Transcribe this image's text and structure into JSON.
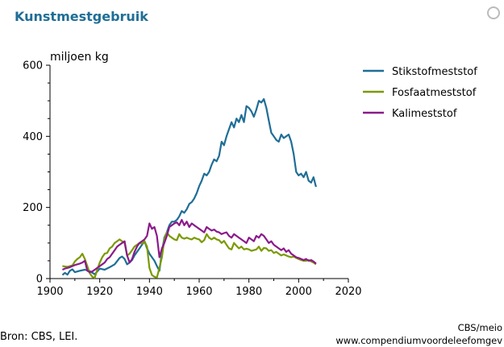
{
  "title": "Kunstmestgebruik",
  "source": "Bron: CBS, LEI.",
  "credit_line1": "CBS/meio",
  "credit_line2": "www.compendiumvoordeleefomgev",
  "colors": {
    "title": "#1f6e96",
    "stikstof": "#1f6e96",
    "fosfaat": "#7a9a01",
    "kali": "#8b1a8b"
  },
  "chart_data": {
    "type": "line",
    "title": "Kunstmestgebruik",
    "xlabel": "",
    "ylabel": "miljoen kg",
    "xlim": [
      1900,
      2020
    ],
    "ylim": [
      0,
      600
    ],
    "x_ticks": [
      1900,
      1920,
      1940,
      1960,
      1980,
      2000,
      2020
    ],
    "y_ticks": [
      0,
      200,
      400,
      600
    ],
    "legend_position": "right",
    "grid": false,
    "series": [
      {
        "name": "Stikstofmeststof",
        "color": "#1f6e96",
        "points": [
          [
            1905,
            10
          ],
          [
            1906,
            16
          ],
          [
            1907,
            11
          ],
          [
            1908,
            22
          ],
          [
            1909,
            26
          ],
          [
            1910,
            18
          ],
          [
            1912,
            22
          ],
          [
            1914,
            25
          ],
          [
            1916,
            21
          ],
          [
            1918,
            12
          ],
          [
            1920,
            28
          ],
          [
            1922,
            25
          ],
          [
            1924,
            32
          ],
          [
            1926,
            40
          ],
          [
            1928,
            58
          ],
          [
            1929,
            62
          ],
          [
            1930,
            55
          ],
          [
            1931,
            40
          ],
          [
            1932,
            45
          ],
          [
            1933,
            52
          ],
          [
            1934,
            65
          ],
          [
            1935,
            75
          ],
          [
            1936,
            85
          ],
          [
            1937,
            95
          ],
          [
            1938,
            105
          ],
          [
            1939,
            85
          ],
          [
            1940,
            70
          ],
          [
            1941,
            60
          ],
          [
            1942,
            50
          ],
          [
            1943,
            35
          ],
          [
            1944,
            22
          ],
          [
            1945,
            75
          ],
          [
            1946,
            115
          ],
          [
            1947,
            130
          ],
          [
            1948,
            150
          ],
          [
            1949,
            160
          ],
          [
            1950,
            160
          ],
          [
            1951,
            165
          ],
          [
            1952,
            175
          ],
          [
            1953,
            190
          ],
          [
            1954,
            185
          ],
          [
            1955,
            195
          ],
          [
            1956,
            210
          ],
          [
            1957,
            215
          ],
          [
            1958,
            225
          ],
          [
            1959,
            240
          ],
          [
            1960,
            260
          ],
          [
            1961,
            275
          ],
          [
            1962,
            295
          ],
          [
            1963,
            290
          ],
          [
            1964,
            300
          ],
          [
            1965,
            320
          ],
          [
            1966,
            335
          ],
          [
            1967,
            330
          ],
          [
            1968,
            345
          ],
          [
            1969,
            385
          ],
          [
            1970,
            375
          ],
          [
            1971,
            400
          ],
          [
            1972,
            420
          ],
          [
            1973,
            440
          ],
          [
            1974,
            425
          ],
          [
            1975,
            450
          ],
          [
            1976,
            440
          ],
          [
            1977,
            460
          ],
          [
            1978,
            440
          ],
          [
            1979,
            485
          ],
          [
            1980,
            480
          ],
          [
            1981,
            470
          ],
          [
            1982,
            455
          ],
          [
            1983,
            475
          ],
          [
            1984,
            500
          ],
          [
            1985,
            495
          ],
          [
            1986,
            505
          ],
          [
            1987,
            480
          ],
          [
            1988,
            445
          ],
          [
            1989,
            410
          ],
          [
            1990,
            400
          ],
          [
            1991,
            390
          ],
          [
            1992,
            385
          ],
          [
            1993,
            405
          ],
          [
            1994,
            395
          ],
          [
            1995,
            400
          ],
          [
            1996,
            405
          ],
          [
            1997,
            385
          ],
          [
            1998,
            350
          ],
          [
            1999,
            300
          ],
          [
            2000,
            290
          ],
          [
            2001,
            295
          ],
          [
            2002,
            285
          ],
          [
            2003,
            300
          ],
          [
            2004,
            275
          ],
          [
            2005,
            270
          ],
          [
            2006,
            285
          ],
          [
            2007,
            258
          ]
        ]
      },
      {
        "name": "Fosfaatmeststof",
        "color": "#7a9a01",
        "points": [
          [
            1905,
            35
          ],
          [
            1906,
            34
          ],
          [
            1907,
            33
          ],
          [
            1908,
            35
          ],
          [
            1909,
            37
          ],
          [
            1910,
            48
          ],
          [
            1911,
            55
          ],
          [
            1912,
            60
          ],
          [
            1913,
            70
          ],
          [
            1914,
            55
          ],
          [
            1915,
            35
          ],
          [
            1916,
            15
          ],
          [
            1917,
            5
          ],
          [
            1918,
            2
          ],
          [
            1919,
            25
          ],
          [
            1920,
            45
          ],
          [
            1921,
            60
          ],
          [
            1922,
            70
          ],
          [
            1923,
            72
          ],
          [
            1924,
            85
          ],
          [
            1925,
            90
          ],
          [
            1926,
            100
          ],
          [
            1927,
            105
          ],
          [
            1928,
            110
          ],
          [
            1929,
            105
          ],
          [
            1930,
            100
          ],
          [
            1931,
            65
          ],
          [
            1932,
            70
          ],
          [
            1933,
            80
          ],
          [
            1934,
            90
          ],
          [
            1935,
            95
          ],
          [
            1936,
            100
          ],
          [
            1937,
            98
          ],
          [
            1938,
            105
          ],
          [
            1939,
            90
          ],
          [
            1940,
            30
          ],
          [
            1941,
            10
          ],
          [
            1942,
            5
          ],
          [
            1943,
            3
          ],
          [
            1944,
            30
          ],
          [
            1945,
            60
          ],
          [
            1946,
            110
          ],
          [
            1947,
            130
          ],
          [
            1948,
            120
          ],
          [
            1949,
            115
          ],
          [
            1950,
            110
          ],
          [
            1951,
            108
          ],
          [
            1952,
            125
          ],
          [
            1953,
            115
          ],
          [
            1954,
            112
          ],
          [
            1955,
            115
          ],
          [
            1956,
            112
          ],
          [
            1957,
            110
          ],
          [
            1958,
            115
          ],
          [
            1959,
            112
          ],
          [
            1960,
            110
          ],
          [
            1961,
            102
          ],
          [
            1962,
            108
          ],
          [
            1963,
            125
          ],
          [
            1964,
            115
          ],
          [
            1965,
            110
          ],
          [
            1966,
            115
          ],
          [
            1967,
            110
          ],
          [
            1968,
            108
          ],
          [
            1969,
            100
          ],
          [
            1970,
            106
          ],
          [
            1971,
            95
          ],
          [
            1972,
            85
          ],
          [
            1973,
            82
          ],
          [
            1974,
            100
          ],
          [
            1975,
            92
          ],
          [
            1976,
            85
          ],
          [
            1977,
            90
          ],
          [
            1978,
            82
          ],
          [
            1979,
            84
          ],
          [
            1980,
            82
          ],
          [
            1981,
            78
          ],
          [
            1982,
            80
          ],
          [
            1983,
            82
          ],
          [
            1984,
            90
          ],
          [
            1985,
            78
          ],
          [
            1986,
            86
          ],
          [
            1987,
            85
          ],
          [
            1988,
            78
          ],
          [
            1989,
            80
          ],
          [
            1990,
            72
          ],
          [
            1991,
            75
          ],
          [
            1992,
            70
          ],
          [
            1993,
            65
          ],
          [
            1994,
            68
          ],
          [
            1995,
            65
          ],
          [
            1996,
            62
          ],
          [
            1997,
            60
          ],
          [
            1998,
            62
          ],
          [
            1999,
            58
          ],
          [
            2000,
            55
          ],
          [
            2001,
            52
          ],
          [
            2002,
            50
          ],
          [
            2003,
            50
          ],
          [
            2004,
            52
          ],
          [
            2005,
            48
          ],
          [
            2006,
            45
          ],
          [
            2007,
            40
          ]
        ]
      },
      {
        "name": "Kalimeststof",
        "color": "#8b1a8b",
        "points": [
          [
            1905,
            25
          ],
          [
            1906,
            28
          ],
          [
            1907,
            30
          ],
          [
            1908,
            32
          ],
          [
            1909,
            35
          ],
          [
            1910,
            38
          ],
          [
            1911,
            40
          ],
          [
            1912,
            42
          ],
          [
            1913,
            45
          ],
          [
            1914,
            50
          ],
          [
            1915,
            22
          ],
          [
            1916,
            18
          ],
          [
            1917,
            20
          ],
          [
            1918,
            25
          ],
          [
            1919,
            30
          ],
          [
            1920,
            35
          ],
          [
            1921,
            40
          ],
          [
            1922,
            45
          ],
          [
            1923,
            55
          ],
          [
            1924,
            60
          ],
          [
            1925,
            70
          ],
          [
            1926,
            80
          ],
          [
            1927,
            90
          ],
          [
            1928,
            95
          ],
          [
            1929,
            100
          ],
          [
            1930,
            105
          ],
          [
            1931,
            65
          ],
          [
            1932,
            45
          ],
          [
            1933,
            55
          ],
          [
            1934,
            75
          ],
          [
            1935,
            90
          ],
          [
            1936,
            100
          ],
          [
            1937,
            105
          ],
          [
            1938,
            110
          ],
          [
            1939,
            120
          ],
          [
            1940,
            155
          ],
          [
            1941,
            140
          ],
          [
            1942,
            145
          ],
          [
            1943,
            120
          ],
          [
            1944,
            60
          ],
          [
            1945,
            85
          ],
          [
            1946,
            100
          ],
          [
            1947,
            120
          ],
          [
            1948,
            145
          ],
          [
            1949,
            150
          ],
          [
            1950,
            155
          ],
          [
            1951,
            158
          ],
          [
            1952,
            150
          ],
          [
            1953,
            165
          ],
          [
            1954,
            150
          ],
          [
            1955,
            160
          ],
          [
            1956,
            145
          ],
          [
            1957,
            155
          ],
          [
            1958,
            150
          ],
          [
            1959,
            145
          ],
          [
            1960,
            140
          ],
          [
            1961,
            135
          ],
          [
            1962,
            130
          ],
          [
            1963,
            145
          ],
          [
            1964,
            140
          ],
          [
            1965,
            135
          ],
          [
            1966,
            138
          ],
          [
            1967,
            132
          ],
          [
            1968,
            130
          ],
          [
            1969,
            125
          ],
          [
            1970,
            128
          ],
          [
            1971,
            130
          ],
          [
            1972,
            120
          ],
          [
            1973,
            115
          ],
          [
            1974,
            125
          ],
          [
            1975,
            120
          ],
          [
            1976,
            115
          ],
          [
            1977,
            110
          ],
          [
            1978,
            105
          ],
          [
            1979,
            100
          ],
          [
            1980,
            115
          ],
          [
            1981,
            110
          ],
          [
            1982,
            105
          ],
          [
            1983,
            120
          ],
          [
            1984,
            115
          ],
          [
            1985,
            125
          ],
          [
            1986,
            120
          ],
          [
            1987,
            110
          ],
          [
            1988,
            100
          ],
          [
            1989,
            105
          ],
          [
            1990,
            95
          ],
          [
            1991,
            90
          ],
          [
            1992,
            85
          ],
          [
            1993,
            80
          ],
          [
            1994,
            85
          ],
          [
            1995,
            75
          ],
          [
            1996,
            80
          ],
          [
            1997,
            70
          ],
          [
            1998,
            65
          ],
          [
            1999,
            60
          ],
          [
            2000,
            58
          ],
          [
            2001,
            55
          ],
          [
            2002,
            52
          ],
          [
            2003,
            55
          ],
          [
            2004,
            50
          ],
          [
            2005,
            52
          ],
          [
            2006,
            48
          ],
          [
            2007,
            42
          ]
        ]
      }
    ]
  }
}
